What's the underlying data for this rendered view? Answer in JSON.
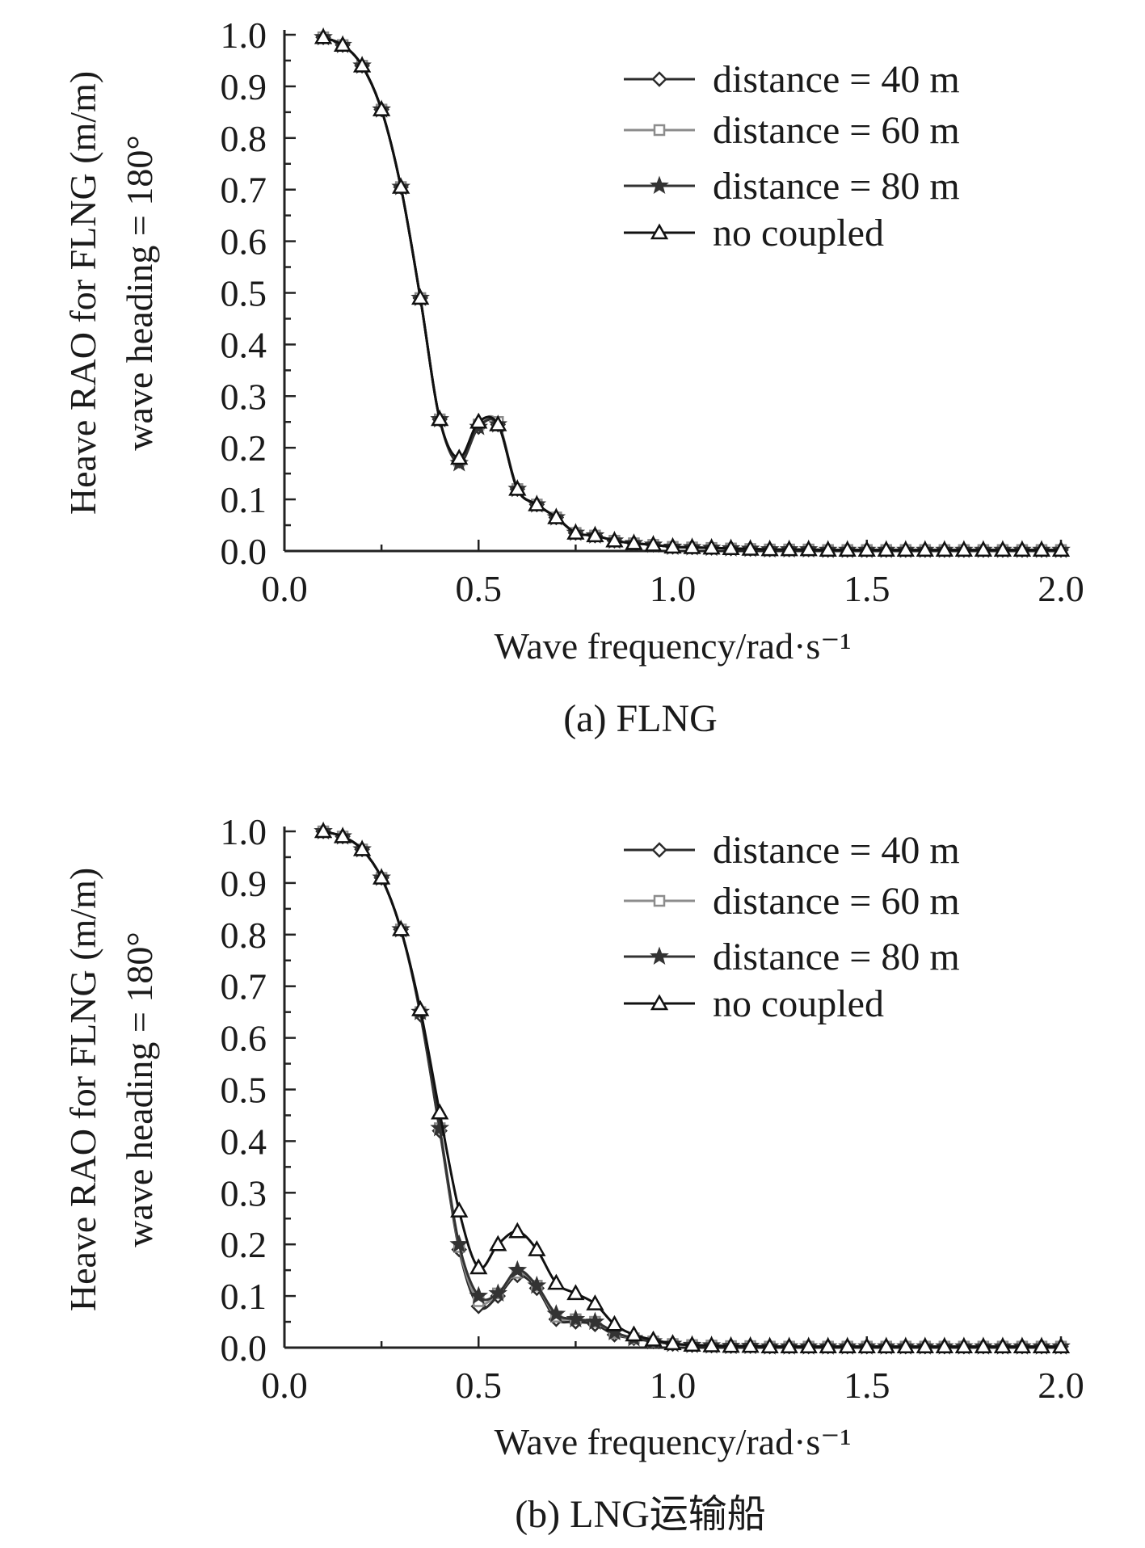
{
  "chart_data": [
    {
      "type": "line",
      "caption": "(a) FLNG",
      "xlabel": "Wave frequency/rad·s⁻¹",
      "ylabel": [
        "Heave RAO for FLNG (m/m)",
        "wave heading = 180°"
      ],
      "xlim": [
        0,
        2
      ],
      "ylim": [
        0,
        1
      ],
      "xticks": [
        "0.0",
        "0.5",
        "1.0",
        "1.5",
        "2.0"
      ],
      "yticks": [
        "0.0",
        "0.1",
        "0.2",
        "0.3",
        "0.4",
        "0.5",
        "0.6",
        "0.7",
        "0.8",
        "0.9",
        "1.0"
      ],
      "legend_position": "top-right",
      "x": [
        0.1,
        0.15,
        0.2,
        0.25,
        0.3,
        0.35,
        0.4,
        0.45,
        0.5,
        0.55,
        0.6,
        0.65,
        0.7,
        0.75,
        0.8,
        0.85,
        0.9,
        0.95,
        1.0,
        1.05,
        1.1,
        1.15,
        1.2,
        1.25,
        1.3,
        1.35,
        1.4,
        1.45,
        1.5,
        1.55,
        1.6,
        1.65,
        1.7,
        1.75,
        1.8,
        1.85,
        1.9,
        1.95,
        2.0
      ],
      "series": [
        {
          "name": "distance = 40 m",
          "color": "#2b2b2b",
          "marker": "diamond",
          "values": [
            0.995,
            0.98,
            0.94,
            0.855,
            0.705,
            0.49,
            0.255,
            0.175,
            0.24,
            0.245,
            0.12,
            0.09,
            0.065,
            0.035,
            0.03,
            0.02,
            0.015,
            0.012,
            0.008,
            0.007,
            0.006,
            0.005,
            0.004,
            0.003,
            0.003,
            0.003,
            0.002,
            0.002,
            0.002,
            0.002,
            0.002,
            0.002,
            0.002,
            0.002,
            0.002,
            0.002,
            0.002,
            0.002,
            0.002
          ]
        },
        {
          "name": "distance = 60 m",
          "color": "#8c8c8c",
          "marker": "square",
          "values": [
            0.995,
            0.98,
            0.94,
            0.855,
            0.705,
            0.49,
            0.255,
            0.175,
            0.245,
            0.25,
            0.12,
            0.09,
            0.065,
            0.035,
            0.03,
            0.02,
            0.015,
            0.012,
            0.008,
            0.007,
            0.006,
            0.005,
            0.004,
            0.003,
            0.003,
            0.003,
            0.002,
            0.002,
            0.002,
            0.002,
            0.002,
            0.002,
            0.002,
            0.002,
            0.002,
            0.002,
            0.002,
            0.002,
            0.002
          ]
        },
        {
          "name": "distance = 80 m",
          "color": "#333333",
          "marker": "star",
          "values": [
            0.995,
            0.98,
            0.94,
            0.855,
            0.705,
            0.49,
            0.255,
            0.17,
            0.24,
            0.245,
            0.12,
            0.09,
            0.065,
            0.035,
            0.03,
            0.02,
            0.015,
            0.012,
            0.008,
            0.007,
            0.006,
            0.005,
            0.004,
            0.003,
            0.003,
            0.003,
            0.002,
            0.002,
            0.002,
            0.002,
            0.002,
            0.002,
            0.002,
            0.002,
            0.002,
            0.002,
            0.002,
            0.002,
            0.002
          ]
        },
        {
          "name": "no coupled",
          "color": "#111111",
          "marker": "triangle",
          "values": [
            0.995,
            0.98,
            0.94,
            0.855,
            0.705,
            0.49,
            0.255,
            0.18,
            0.25,
            0.245,
            0.12,
            0.09,
            0.065,
            0.035,
            0.03,
            0.02,
            0.015,
            0.012,
            0.008,
            0.007,
            0.006,
            0.005,
            0.004,
            0.003,
            0.003,
            0.003,
            0.002,
            0.002,
            0.002,
            0.002,
            0.002,
            0.002,
            0.002,
            0.002,
            0.002,
            0.002,
            0.002,
            0.002,
            0.002
          ]
        }
      ]
    },
    {
      "type": "line",
      "caption": "(b) LNG运输船",
      "xlabel": "Wave frequency/rad·s⁻¹",
      "ylabel": [
        "Heave RAO for FLNG (m/m)",
        "wave heading = 180°"
      ],
      "xlim": [
        0,
        2
      ],
      "ylim": [
        0,
        1
      ],
      "xticks": [
        "0.0",
        "0.5",
        "1.0",
        "1.5",
        "2.0"
      ],
      "yticks": [
        "0.0",
        "0.1",
        "0.2",
        "0.3",
        "0.4",
        "0.5",
        "0.6",
        "0.7",
        "0.8",
        "0.9",
        "1.0"
      ],
      "legend_position": "top-right",
      "x": [
        0.1,
        0.15,
        0.2,
        0.25,
        0.3,
        0.35,
        0.4,
        0.45,
        0.5,
        0.55,
        0.6,
        0.65,
        0.7,
        0.75,
        0.8,
        0.85,
        0.9,
        0.95,
        1.0,
        1.05,
        1.1,
        1.15,
        1.2,
        1.25,
        1.3,
        1.35,
        1.4,
        1.45,
        1.5,
        1.55,
        1.6,
        1.65,
        1.7,
        1.75,
        1.8,
        1.85,
        1.9,
        1.95,
        2.0
      ],
      "series": [
        {
          "name": "distance = 40 m",
          "color": "#2b2b2b",
          "marker": "diamond",
          "values": [
            1.0,
            0.99,
            0.965,
            0.91,
            0.81,
            0.645,
            0.42,
            0.19,
            0.08,
            0.1,
            0.14,
            0.115,
            0.055,
            0.05,
            0.045,
            0.025,
            0.018,
            0.012,
            0.007,
            0.005,
            0.004,
            0.003,
            0.003,
            0.002,
            0.002,
            0.002,
            0.002,
            0.002,
            0.002,
            0.002,
            0.002,
            0.002,
            0.002,
            0.002,
            0.002,
            0.002,
            0.002,
            0.002,
            0.002
          ]
        },
        {
          "name": "distance = 60 m",
          "color": "#8c8c8c",
          "marker": "square",
          "values": [
            1.0,
            0.99,
            0.965,
            0.91,
            0.81,
            0.65,
            0.425,
            0.195,
            0.09,
            0.105,
            0.145,
            0.12,
            0.06,
            0.055,
            0.05,
            0.028,
            0.018,
            0.012,
            0.007,
            0.005,
            0.004,
            0.003,
            0.003,
            0.002,
            0.002,
            0.002,
            0.002,
            0.002,
            0.002,
            0.002,
            0.002,
            0.002,
            0.002,
            0.002,
            0.002,
            0.002,
            0.002,
            0.002,
            0.002
          ]
        },
        {
          "name": "distance = 80 m",
          "color": "#333333",
          "marker": "star",
          "values": [
            1.0,
            0.99,
            0.965,
            0.91,
            0.81,
            0.65,
            0.425,
            0.2,
            0.1,
            0.105,
            0.15,
            0.12,
            0.065,
            0.055,
            0.05,
            0.03,
            0.018,
            0.012,
            0.007,
            0.005,
            0.004,
            0.003,
            0.003,
            0.002,
            0.002,
            0.002,
            0.002,
            0.002,
            0.002,
            0.002,
            0.002,
            0.002,
            0.002,
            0.002,
            0.002,
            0.002,
            0.002,
            0.002,
            0.002
          ]
        },
        {
          "name": "no coupled",
          "color": "#111111",
          "marker": "triangle",
          "values": [
            1.0,
            0.99,
            0.965,
            0.91,
            0.81,
            0.655,
            0.455,
            0.265,
            0.155,
            0.2,
            0.225,
            0.19,
            0.125,
            0.105,
            0.085,
            0.045,
            0.025,
            0.015,
            0.008,
            0.005,
            0.004,
            0.003,
            0.003,
            0.002,
            0.002,
            0.002,
            0.002,
            0.002,
            0.002,
            0.002,
            0.002,
            0.002,
            0.002,
            0.002,
            0.002,
            0.002,
            0.002,
            0.002,
            0.002
          ]
        }
      ]
    }
  ]
}
